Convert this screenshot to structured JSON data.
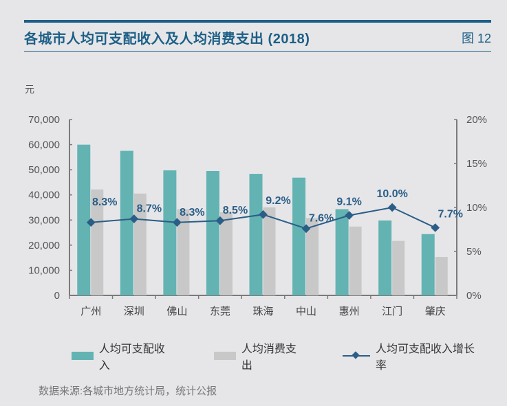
{
  "header": {
    "title": "各城市人均可支配收入及人均消费支出 (2018)",
    "figure_label": "图 12"
  },
  "source": "数据来源:各城市地方统计局，统计公报",
  "colors": {
    "income": "#63b3b3",
    "spending": "#c8c8c8",
    "growth": "#2b5e86",
    "axis": "#7a7a7a",
    "label": "#2b5e86"
  },
  "chart_data": {
    "type": "bar",
    "title": "各城市人均可支配收入及人均消费支出 (2018)",
    "categories": [
      "广州",
      "深圳",
      "佛山",
      "东莞",
      "珠海",
      "中山",
      "惠州",
      "江门",
      "肇庆"
    ],
    "ylabel": "元",
    "ylim": [
      0,
      70000
    ],
    "yticks": [
      "0",
      "10,000",
      "20,000",
      "30,000",
      "40,000",
      "50,000",
      "60,000",
      "70,000"
    ],
    "y2lim": [
      0,
      20
    ],
    "y2ticks": [
      "0%",
      "5%",
      "10%",
      "15%",
      "20%"
    ],
    "legend_position": "bottom",
    "series": [
      {
        "name": "人均可支配收入",
        "type": "bar",
        "axis": "left",
        "values": [
          59982,
          57543,
          49775,
          49500,
          48381,
          46855,
          34322,
          29822,
          24400
        ]
      },
      {
        "name": "人均消费支出",
        "type": "bar",
        "axis": "left",
        "values": [
          42181,
          40535,
          34300,
          33100,
          35036,
          30800,
          27400,
          21700,
          15300
        ]
      },
      {
        "name": "人均可支配收入增长率",
        "type": "line",
        "axis": "right",
        "values": [
          8.3,
          8.7,
          8.3,
          8.5,
          9.2,
          7.6,
          9.1,
          10.0,
          7.7
        ],
        "labels": [
          "8.3%",
          "8.7%",
          "8.3%",
          "8.5%",
          "9.2%",
          "7.6%",
          "9.1%",
          "10.0%",
          "7.7%"
        ]
      }
    ]
  }
}
